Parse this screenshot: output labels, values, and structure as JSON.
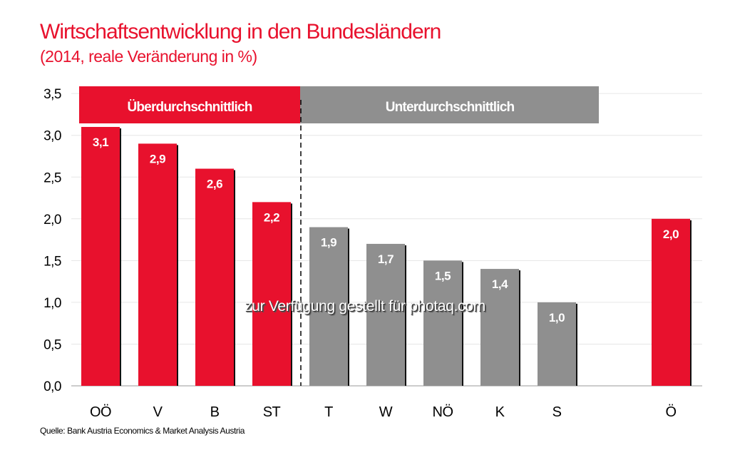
{
  "chart_data": {
    "type": "bar",
    "title": "Wirtschaftsentwicklung in den Bundesländern",
    "subtitle": "(2014, reale Veränderung in %)",
    "categories": [
      "OÖ",
      "V",
      "B",
      "ST",
      "T",
      "W",
      "NÖ",
      "K",
      "S",
      "Ö"
    ],
    "values": [
      3.1,
      2.9,
      2.6,
      2.2,
      1.9,
      1.7,
      1.5,
      1.4,
      1.0,
      2.0
    ],
    "value_labels": [
      "3,1",
      "2,9",
      "2,6",
      "2,2",
      "1,9",
      "1,7",
      "1,5",
      "1,4",
      "1,0",
      "2,0"
    ],
    "groups": [
      "above",
      "above",
      "above",
      "above",
      "below",
      "below",
      "below",
      "below",
      "below",
      "total"
    ],
    "ylim": [
      0,
      3.5
    ],
    "yticks": [
      "0,0",
      "0,5",
      "1,0",
      "1,5",
      "2,0",
      "2,5",
      "3,0",
      "3,5"
    ],
    "grid": true,
    "group_headers": {
      "above": "Überdurchschnittlich",
      "below": "Unterdurchschnittlich"
    },
    "colors": {
      "above": "#e8112d",
      "below": "#8f8f8f",
      "total": "#e8112d",
      "title": "#e8112d"
    },
    "source": "Quelle: Bank Austria Economics & Market Analysis Austria"
  },
  "watermark": "zur Verfügung gestellt für photaq.com"
}
